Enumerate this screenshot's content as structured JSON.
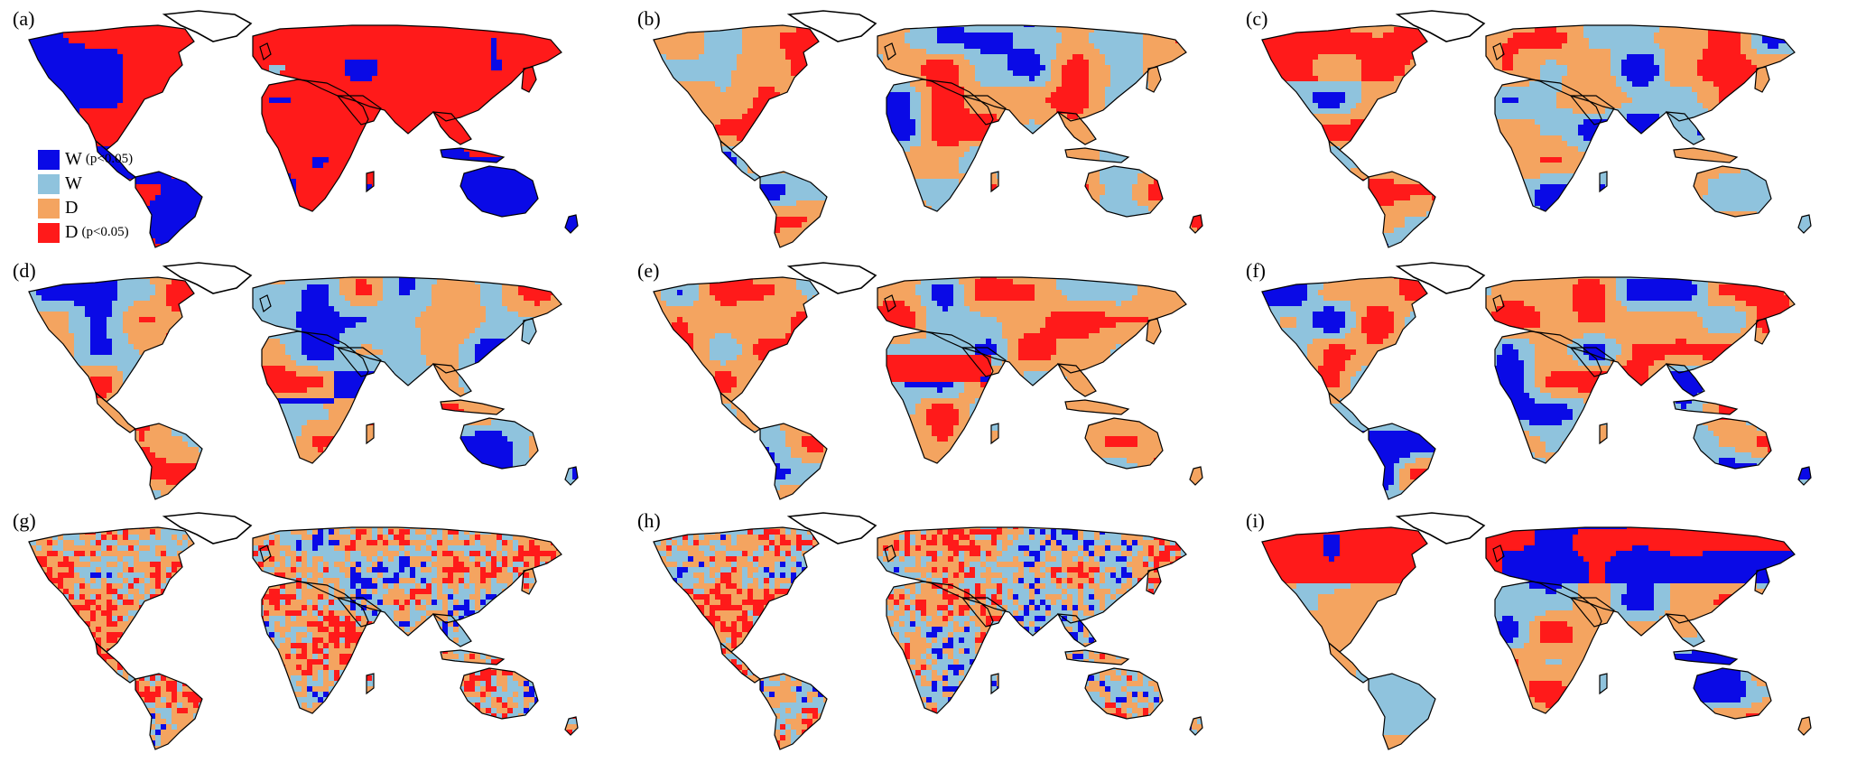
{
  "colors": {
    "W_sig": "#0a0ae6",
    "W": "#8fc3dd",
    "D": "#f4a460",
    "D_sig": "#ff1a1a",
    "outline": "#000000"
  },
  "panels": [
    {
      "label": "(a)",
      "scheme": "a",
      "seed": 11
    },
    {
      "label": "(b)",
      "scheme": "b",
      "seed": 23
    },
    {
      "label": "(c)",
      "scheme": "c",
      "seed": 37
    },
    {
      "label": "(d)",
      "scheme": "d",
      "seed": 41
    },
    {
      "label": "(e)",
      "scheme": "e",
      "seed": 53
    },
    {
      "label": "(f)",
      "scheme": "f",
      "seed": 67
    },
    {
      "label": "(g)",
      "scheme": "g",
      "seed": 71
    },
    {
      "label": "(h)",
      "scheme": "h",
      "seed": 83
    },
    {
      "label": "(i)",
      "scheme": "i",
      "seed": 97
    }
  ],
  "legend": {
    "items": [
      {
        "key": "W_sig",
        "text": "W",
        "sub": "(p<0.05)"
      },
      {
        "key": "W",
        "text": "W",
        "sub": ""
      },
      {
        "key": "D",
        "text": "D",
        "sub": ""
      },
      {
        "key": "D_sig",
        "text": "D",
        "sub": "(p<0.05)"
      }
    ]
  }
}
